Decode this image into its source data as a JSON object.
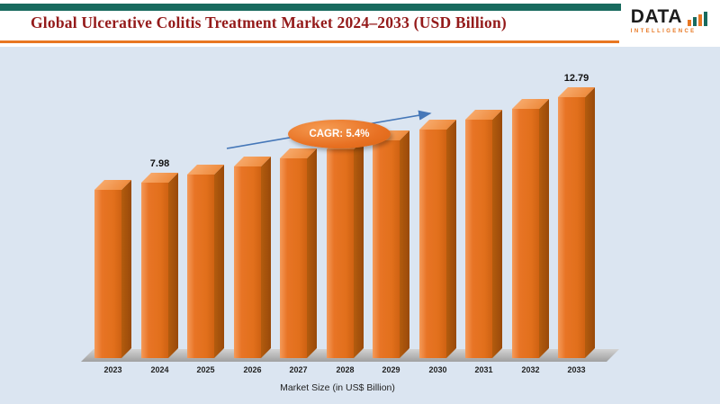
{
  "header": {
    "title": "Global Ulcerative Colitis Treatment Market 2024–2033 (USD Billion)",
    "accent_teal": "#186a5e",
    "accent_orange": "#e87722",
    "title_color": "#941a1a"
  },
  "logo": {
    "name": "DATA",
    "subtitle": "INTELLIGENCE"
  },
  "chart_data": {
    "type": "bar",
    "title": "Global Ulcerative Colitis Treatment Market 2024–2033 (USD Billion)",
    "categories": [
      "2023",
      "2024",
      "2025",
      "2026",
      "2027",
      "2028",
      "2029",
      "2030",
      "2031",
      "2032",
      "2033"
    ],
    "values": [
      7.57,
      7.98,
      8.41,
      8.86,
      9.34,
      9.85,
      10.38,
      10.94,
      11.53,
      12.15,
      12.79
    ],
    "data_labels": [
      {
        "category": "2024",
        "text": "7.98"
      },
      {
        "category": "2033",
        "text": "12.79"
      }
    ],
    "annotation": {
      "label": "CAGR: 5.4%",
      "color": "#e87722"
    },
    "xlabel": "Market Size (in US$ Billion)",
    "ylabel": "",
    "ylim": [
      0,
      14
    ],
    "grid": false,
    "legend_position": "none",
    "bar_color": "#e2701c",
    "bar_side_color": "#a9540d",
    "bar_top_color": "#f0924a",
    "arrow_color": "#4577b8",
    "background_color": "#dbe5f1",
    "floor_color": "#b3b3b3"
  }
}
